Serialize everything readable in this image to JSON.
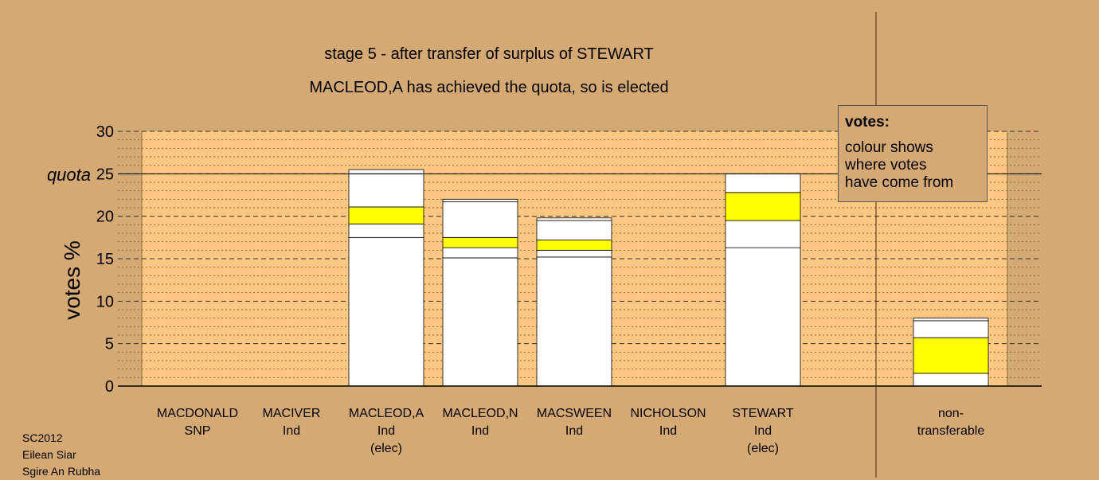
{
  "chart_data": {
    "type": "bar",
    "stacked": true,
    "title": "stage 5 - after transfer of surplus of STEWART",
    "subtitle": "MACLEOD,A has achieved the quota, so is elected",
    "ylabel": "votes %",
    "ylim": [
      0,
      30
    ],
    "yticks": [
      "0",
      "5",
      "10",
      "15",
      "20",
      "25",
      "30"
    ],
    "quota": {
      "label": "quota",
      "value": 25
    },
    "grid": true,
    "categories": [
      {
        "name": "MACDONALD",
        "party": "SNP",
        "note": ""
      },
      {
        "name": "MACIVER",
        "party": "Ind",
        "note": ""
      },
      {
        "name": "MACLEOD,A",
        "party": "Ind",
        "note": "(elec)"
      },
      {
        "name": "MACLEOD,N",
        "party": "Ind",
        "note": ""
      },
      {
        "name": "MACSWEEN",
        "party": "Ind",
        "note": ""
      },
      {
        "name": "NICHOLSON",
        "party": "Ind",
        "note": ""
      },
      {
        "name": "STEWART",
        "party": "Ind",
        "note": "(elec)"
      },
      {
        "name": "non-",
        "party": "transferable",
        "note": ""
      }
    ],
    "segments": [
      [],
      [],
      [
        {
          "value": 17.5,
          "color": "#ffffff"
        },
        {
          "value": 1.6,
          "color": "#ffffff"
        },
        {
          "value": 2.0,
          "color": "#ffff00"
        },
        {
          "value": 3.9,
          "color": "#ffffff"
        },
        {
          "value": 0.5,
          "color": "#ffffff"
        }
      ],
      [
        {
          "value": 15.1,
          "color": "#ffffff"
        },
        {
          "value": 1.2,
          "color": "#ffffff"
        },
        {
          "value": 1.2,
          "color": "#ffff00"
        },
        {
          "value": 4.2,
          "color": "#ffffff"
        },
        {
          "value": 0.3,
          "color": "#ffffff"
        }
      ],
      [
        {
          "value": 15.2,
          "color": "#ffffff"
        },
        {
          "value": 0.8,
          "color": "#ffffff"
        },
        {
          "value": 1.2,
          "color": "#ffff00"
        },
        {
          "value": 2.3,
          "color": "#ffffff"
        },
        {
          "value": 0.3,
          "color": "#ffffff"
        }
      ],
      [],
      [
        {
          "value": 16.3,
          "color": "#ffffff"
        },
        {
          "value": 3.2,
          "color": "#ffffff"
        },
        {
          "value": 3.3,
          "color": "#ffff00"
        },
        {
          "value": 2.2,
          "color": "#ffffff"
        }
      ],
      [
        {
          "value": 1.5,
          "color": "#ffffff"
        },
        {
          "value": 4.2,
          "color": "#ffff00"
        },
        {
          "value": 2.0,
          "color": "#ffffff"
        },
        {
          "value": 0.3,
          "color": "#ffffff"
        }
      ]
    ]
  },
  "legend": {
    "title": "votes:",
    "lines": [
      "colour shows",
      "where votes",
      "have come from"
    ]
  },
  "footer": [
    "SC2012",
    "Eilean Siar",
    "Sgire An Rubha"
  ],
  "colors": {
    "background": "#d4a974",
    "plot_area": "#ffc882",
    "bar": "#ffffff",
    "transfer": "#ffff00"
  }
}
